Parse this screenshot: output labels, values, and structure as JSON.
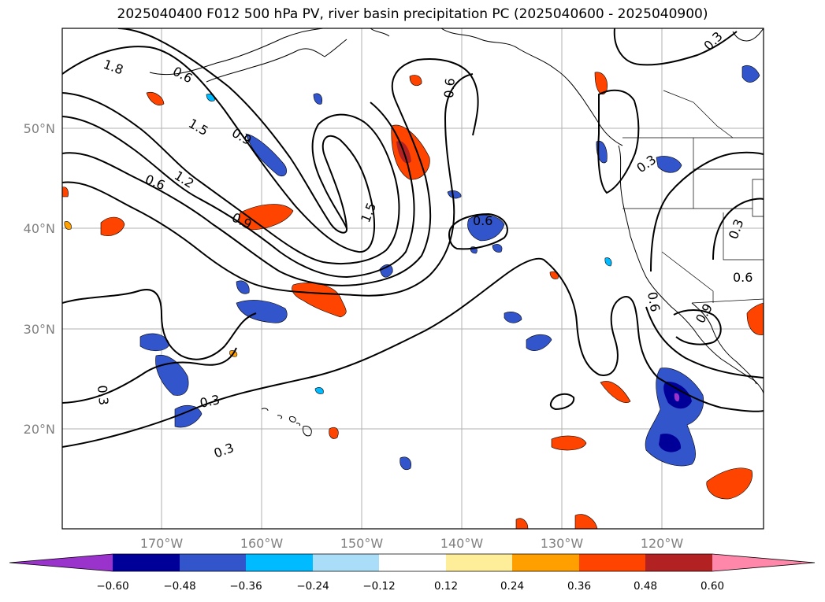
{
  "title": "2025040400 F012 500 hPa PV, river basin precipitation PC (2025040600 - 2025040900)",
  "map": {
    "lat_ticks": [
      "50°N",
      "40°N",
      "30°N",
      "20°N"
    ],
    "lon_ticks": [
      "170°W",
      "160°W",
      "150°W",
      "140°W",
      "130°W",
      "120°W"
    ],
    "pv_contour_labels": [
      "1.8",
      "0.6",
      "1.5",
      "0.9",
      "1.2",
      "0.6",
      "0.9",
      "1.5",
      "0.6",
      "0.6",
      "0.3",
      "0.3",
      "0.3",
      "0.3",
      "0.3",
      "0.3",
      "0.6",
      "0.6",
      "0.9",
      "0.3",
      "0.6"
    ]
  },
  "colorbar": {
    "ticks": [
      "−0.60",
      "−0.48",
      "−0.36",
      "−0.24",
      "−0.12",
      "0.12",
      "0.24",
      "0.36",
      "0.48",
      "0.60"
    ],
    "colors": [
      "#9933cc",
      "#000099",
      "#3355cc",
      "#00bbff",
      "#aaddf7",
      "#ffffff",
      "#ffee99",
      "#ffa000",
      "#ff4400",
      "#b22222",
      "#ff88aa"
    ]
  }
}
